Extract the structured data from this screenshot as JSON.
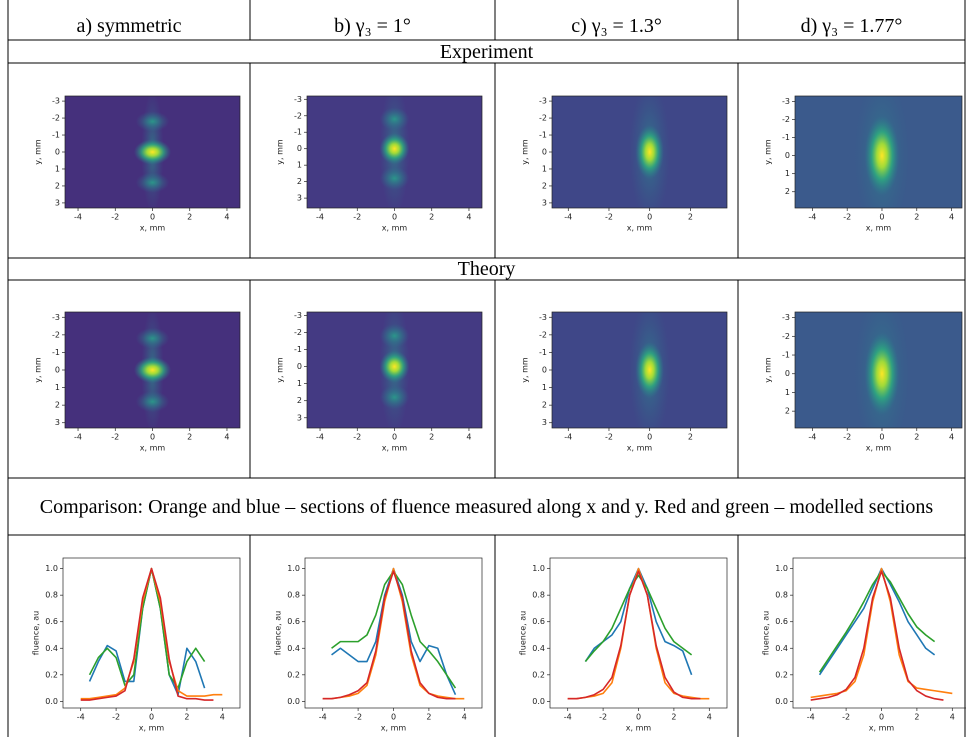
{
  "table": {
    "headers": [
      "a) symmetric",
      "b) γ₃ = 1°",
      "c) γ₃ = 1.3°",
      "d) γ₃ = 1.77°"
    ],
    "sections": [
      "Experiment",
      "Theory",
      "Comparison: Orange and blue – sections of fluence measured along x and y. Red and green – modelled sections"
    ],
    "experiment": [
      {
        "xlabel": "x, mm",
        "ylabel": "y, mm",
        "xlim": [
          -4.7,
          4.7
        ],
        "ylim": [
          3.3,
          -3.3
        ],
        "xticks": [
          -4,
          -2,
          0,
          2,
          4
        ],
        "yticks": [
          -3,
          -2,
          -1,
          0,
          1,
          2,
          3
        ]
      },
      {
        "xlabel": "x, mm",
        "ylabel": "y, mm",
        "xlim": [
          -4.7,
          4.7
        ],
        "ylim": [
          3.6,
          -3.2
        ],
        "xticks": [
          -4,
          -2,
          0,
          2,
          4
        ],
        "yticks": [
          -3,
          -2,
          -1,
          0,
          1,
          2,
          3
        ]
      },
      {
        "xlabel": "x, mm",
        "ylabel": "y, mm",
        "xlim": [
          -4.8,
          3.8
        ],
        "ylim": [
          3.3,
          -3.3
        ],
        "xticks": [
          -4,
          -2,
          0,
          2
        ],
        "yticks": [
          -3,
          -2,
          -1,
          0,
          1,
          2,
          3
        ]
      },
      {
        "xlabel": "x, mm",
        "ylabel": "y, mm",
        "xlim": [
          -5,
          4.6
        ],
        "ylim": [
          2.9,
          -3.3
        ],
        "xticks": [
          -4,
          -2,
          0,
          2,
          4
        ],
        "yticks": [
          -3,
          -2,
          -1,
          0,
          1,
          2
        ]
      }
    ],
    "theory": [
      {
        "xlabel": "x, mm",
        "ylabel": "y, mm",
        "xlim": [
          -4.7,
          4.7
        ],
        "ylim": [
          3.3,
          -3.3
        ],
        "xticks": [
          -4,
          -2,
          0,
          2,
          4
        ],
        "yticks": [
          -3,
          -2,
          -1,
          0,
          1,
          2,
          3
        ]
      },
      {
        "xlabel": "x, mm",
        "ylabel": "y, mm",
        "xlim": [
          -4.7,
          4.7
        ],
        "ylim": [
          3.6,
          -3.2
        ],
        "xticks": [
          -4,
          -2,
          0,
          2,
          4
        ],
        "yticks": [
          -3,
          -2,
          -1,
          0,
          1,
          2,
          3
        ]
      },
      {
        "xlabel": "x, mm",
        "ylabel": "y, mm",
        "xlim": [
          -4.8,
          3.8
        ],
        "ylim": [
          3.3,
          -3.3
        ],
        "xticks": [
          -4,
          -2,
          0,
          2
        ],
        "yticks": [
          -3,
          -2,
          -1,
          0,
          1,
          2,
          3
        ]
      },
      {
        "xlabel": "x, mm",
        "ylabel": "y, mm",
        "xlim": [
          -5,
          4.6
        ],
        "ylim": [
          2.9,
          -3.3
        ],
        "xticks": [
          -4,
          -2,
          0,
          2,
          4
        ],
        "yticks": [
          -3,
          -2,
          -1,
          0,
          1,
          2
        ]
      }
    ],
    "comparison": [
      {
        "type": "line",
        "xlabel": "x, mm",
        "ylabel": "fluence, au",
        "xlim": [
          -5,
          5
        ],
        "ylim": [
          -0.05,
          1.08
        ],
        "xticks": [
          -4,
          -2,
          0,
          2,
          4
        ],
        "yticks": [
          {
            "value": 0,
            "label": "0.0"
          },
          0.2,
          0.4,
          0.6,
          0.8,
          {
            "value": 1,
            "label": "1.0"
          }
        ],
        "x": [
          -4,
          -3.5,
          -3,
          -2.5,
          -2,
          -1.5,
          -1,
          -0.5,
          0,
          0.5,
          1,
          1.5,
          2,
          2.5,
          3,
          3.5,
          4
        ],
        "series": [
          {
            "color": "#1f77b4",
            "values": [
              null,
              0.15,
              0.3,
              0.42,
              0.38,
              0.15,
              0.15,
              0.7,
              1.0,
              0.7,
              0.2,
              0.05,
              0.4,
              0.3,
              0.1,
              null,
              null
            ]
          },
          {
            "color": "#2ca02c",
            "values": [
              null,
              0.2,
              0.33,
              0.4,
              0.33,
              0.12,
              0.2,
              0.7,
              1.0,
              0.7,
              0.2,
              0.1,
              0.3,
              0.4,
              0.3,
              null,
              null
            ]
          },
          {
            "color": "#ff7f0e",
            "values": [
              0.02,
              0.02,
              0.03,
              0.04,
              0.05,
              0.1,
              0.3,
              0.75,
              1.0,
              0.75,
              0.3,
              0.08,
              0.04,
              0.04,
              0.04,
              0.05,
              0.05
            ]
          },
          {
            "color": "#d62728",
            "values": [
              0.01,
              0.01,
              0.02,
              0.03,
              0.04,
              0.08,
              0.32,
              0.78,
              1.0,
              0.78,
              0.32,
              0.04,
              0.02,
              0.02,
              0.01,
              0.01,
              null
            ]
          }
        ]
      },
      {
        "type": "line",
        "xlabel": "x, mm",
        "ylabel": "fluence, au",
        "xlim": [
          -5,
          5
        ],
        "ylim": [
          -0.05,
          1.08
        ],
        "xticks": [
          -4,
          -2,
          0,
          2,
          4
        ],
        "yticks": [
          {
            "value": 0,
            "label": "0.0"
          },
          0.2,
          0.4,
          0.6,
          0.8,
          {
            "value": 1,
            "label": "1.0"
          }
        ],
        "x": [
          -4,
          -3.5,
          -3,
          -2.5,
          -2,
          -1.5,
          -1,
          -0.5,
          0,
          0.5,
          1,
          1.5,
          2,
          2.5,
          3,
          3.5,
          4
        ],
        "series": [
          {
            "color": "#1f77b4",
            "values": [
              null,
              0.35,
              0.4,
              0.35,
              0.3,
              0.3,
              0.45,
              0.8,
              1.0,
              0.8,
              0.45,
              0.3,
              0.42,
              0.4,
              0.2,
              0.05,
              null
            ]
          },
          {
            "color": "#2ca02c",
            "values": [
              null,
              0.4,
              0.45,
              0.45,
              0.45,
              0.5,
              0.65,
              0.88,
              0.98,
              0.88,
              0.65,
              0.45,
              0.38,
              0.3,
              0.2,
              0.1,
              null
            ]
          },
          {
            "color": "#ff7f0e",
            "values": [
              0.02,
              0.02,
              0.03,
              0.04,
              0.06,
              0.12,
              0.35,
              0.75,
              1.0,
              0.75,
              0.35,
              0.12,
              0.06,
              0.04,
              0.03,
              0.02,
              0.02
            ]
          },
          {
            "color": "#d62728",
            "values": [
              0.02,
              0.02,
              0.03,
              0.05,
              0.08,
              0.14,
              0.38,
              0.78,
              0.98,
              0.78,
              0.38,
              0.14,
              0.06,
              0.03,
              0.02,
              0.02,
              null
            ]
          }
        ]
      },
      {
        "type": "line",
        "xlabel": "x, mm",
        "ylabel": "fluence, au",
        "xlim": [
          -5,
          5
        ],
        "ylim": [
          -0.05,
          1.08
        ],
        "xticks": [
          -4,
          -2,
          0,
          2,
          4
        ],
        "yticks": [
          {
            "value": 0,
            "label": "0.0"
          },
          0.2,
          0.4,
          0.6,
          0.8,
          {
            "value": 1,
            "label": "1.0"
          }
        ],
        "x": [
          -4,
          -3.5,
          -3,
          -2.5,
          -2,
          -1.5,
          -1,
          -0.5,
          0,
          0.5,
          1,
          1.5,
          2,
          2.5,
          3,
          3.5,
          4
        ],
        "series": [
          {
            "color": "#1f77b4",
            "values": [
              null,
              null,
              0.3,
              0.4,
              0.45,
              0.5,
              0.6,
              0.85,
              1.0,
              0.85,
              0.6,
              0.45,
              0.42,
              0.38,
              0.2,
              null,
              null
            ]
          },
          {
            "color": "#2ca02c",
            "values": [
              null,
              null,
              0.3,
              0.38,
              0.45,
              0.55,
              0.7,
              0.85,
              0.95,
              0.85,
              0.7,
              0.55,
              0.45,
              0.4,
              0.35,
              null,
              null
            ]
          },
          {
            "color": "#ff7f0e",
            "values": [
              0.02,
              0.02,
              0.03,
              0.04,
              0.06,
              0.14,
              0.4,
              0.8,
              1.0,
              0.8,
              0.4,
              0.14,
              0.06,
              0.04,
              0.03,
              0.02,
              0.02
            ]
          },
          {
            "color": "#d62728",
            "values": [
              0.02,
              0.02,
              0.03,
              0.05,
              0.09,
              0.18,
              0.42,
              0.8,
              0.98,
              0.8,
              0.42,
              0.18,
              0.07,
              0.03,
              0.02,
              0.02,
              null
            ]
          }
        ]
      },
      {
        "type": "line",
        "xlabel": "x, mm",
        "ylabel": "fluence, au",
        "xlim": [
          -5,
          5
        ],
        "ylim": [
          -0.05,
          1.08
        ],
        "xticks": [
          -4,
          -2,
          0,
          2,
          4
        ],
        "yticks": [
          {
            "value": 0,
            "label": "0.0"
          },
          0.2,
          0.4,
          0.6,
          0.8,
          {
            "value": 1,
            "label": "1.0"
          }
        ],
        "x": [
          -4,
          -3.5,
          -3,
          -2.5,
          -2,
          -1.5,
          -1,
          -0.5,
          0,
          0.5,
          1,
          1.5,
          2,
          2.5,
          3,
          3.5,
          4
        ],
        "series": [
          {
            "color": "#1f77b4",
            "values": [
              null,
              0.2,
              0.3,
              0.4,
              0.5,
              0.6,
              0.7,
              0.85,
              1.0,
              0.88,
              0.75,
              0.6,
              0.5,
              0.4,
              0.35,
              null,
              null
            ]
          },
          {
            "color": "#2ca02c",
            "values": [
              null,
              0.22,
              0.32,
              0.42,
              0.52,
              0.63,
              0.75,
              0.88,
              0.98,
              0.9,
              0.78,
              0.66,
              0.56,
              0.5,
              0.45,
              null,
              null
            ]
          },
          {
            "color": "#ff7f0e",
            "values": [
              0.03,
              0.04,
              0.05,
              0.06,
              0.08,
              0.15,
              0.35,
              0.75,
              1.0,
              0.75,
              0.35,
              0.15,
              0.1,
              0.09,
              0.08,
              0.07,
              0.06
            ]
          },
          {
            "color": "#d62728",
            "values": [
              0.01,
              0.02,
              0.03,
              0.05,
              0.09,
              0.18,
              0.4,
              0.78,
              0.98,
              0.78,
              0.4,
              0.16,
              0.08,
              0.04,
              0.02,
              0.01,
              null
            ]
          }
        ]
      }
    ]
  }
}
